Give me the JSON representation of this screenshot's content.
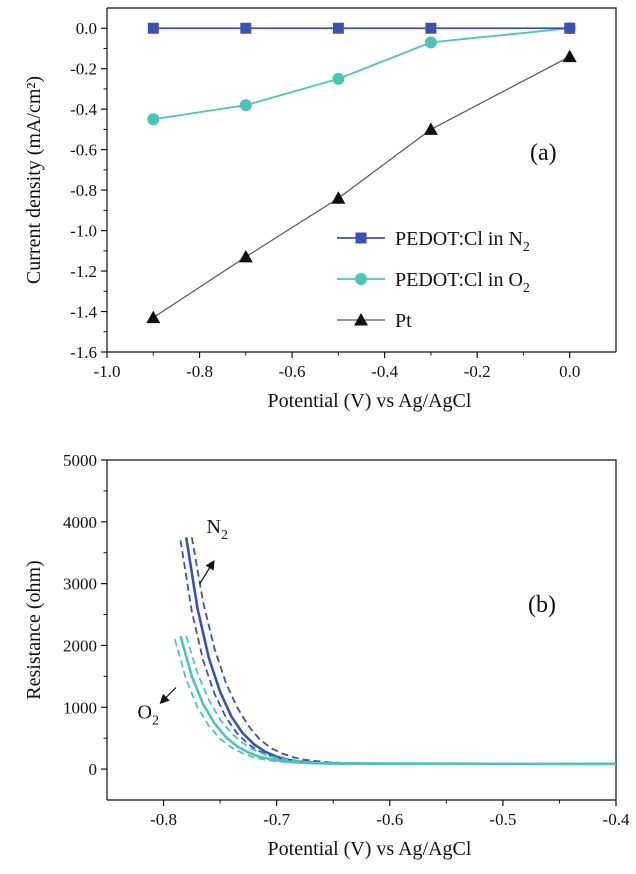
{
  "colors": {
    "axis": "#111111",
    "n2_series": "#3b52b3",
    "o2_series": "#4dc4b8",
    "pt_series": "#111111",
    "pt_line": "#555555"
  },
  "chart_data": [
    {
      "id": "a",
      "type": "line",
      "panel_label": "(a)",
      "xlabel": "Potential (V) vs Ag/AgCl",
      "ylabel": "Current density (mA/cm²)",
      "xlim": [
        -1.0,
        0.1
      ],
      "ylim": [
        -1.6,
        0.1
      ],
      "x_ticks": [
        -1.0,
        -0.8,
        -0.6,
        -0.4,
        -0.2,
        0.0
      ],
      "x_tick_labels": [
        "-1.0",
        "-0.8",
        "-0.6",
        "-0.4",
        "-0.2",
        "0.0"
      ],
      "y_ticks": [
        0.0,
        -0.2,
        -0.4,
        -0.6,
        -0.8,
        -1.0,
        -1.2,
        -1.4,
        -1.6
      ],
      "y_tick_labels": [
        "0.0",
        "-0.2",
        "-0.4",
        "-0.6",
        "-0.8",
        "-1.0",
        "-1.2",
        "-1.4",
        "-1.6"
      ],
      "grid": false,
      "legend_position": "lower-right",
      "series": [
        {
          "name": "PEDOT:Cl in N",
          "name_sub": "2",
          "marker": "square",
          "color": "#3b52b3",
          "line_color": "#3b52b3",
          "x": [
            -0.9,
            -0.7,
            -0.5,
            -0.3,
            0.0
          ],
          "y": [
            0.0,
            0.0,
            0.0,
            0.0,
            0.0
          ]
        },
        {
          "name": "PEDOT:Cl in O",
          "name_sub": "2",
          "marker": "circle",
          "color": "#4dc4b8",
          "line_color": "#4dc4b8",
          "x": [
            -0.9,
            -0.7,
            -0.5,
            -0.3,
            0.0
          ],
          "y": [
            -0.45,
            -0.38,
            -0.25,
            -0.07,
            0.0
          ]
        },
        {
          "name": "Pt",
          "name_sub": "",
          "marker": "triangle",
          "color": "#111111",
          "line_color": "#555555",
          "x": [
            -0.9,
            -0.7,
            -0.5,
            -0.3,
            0.0
          ],
          "y": [
            -1.43,
            -1.13,
            -0.84,
            -0.5,
            -0.14
          ]
        }
      ]
    },
    {
      "id": "b",
      "type": "line",
      "panel_label": "(b)",
      "xlabel": "Potential (V) vs Ag/AgCl",
      "ylabel": "Resistance (ohm)",
      "xlim": [
        -0.85,
        -0.4
      ],
      "ylim": [
        -500,
        5000
      ],
      "x_ticks": [
        -0.8,
        -0.7,
        -0.6,
        -0.5,
        -0.4
      ],
      "x_tick_labels": [
        "-0.8",
        "-0.7",
        "-0.6",
        "-0.5",
        "-0.4"
      ],
      "y_ticks": [
        0,
        1000,
        2000,
        3000,
        4000,
        5000
      ],
      "y_tick_labels": [
        "0",
        "1000",
        "2000",
        "3000",
        "4000",
        "5000"
      ],
      "grid": false,
      "annotations": [
        {
          "text": "N",
          "sub": "2",
          "x": -0.762,
          "y": 3820,
          "arrow_from": [
            -0.768,
            3000
          ],
          "arrow_to": [
            -0.756,
            3350
          ]
        },
        {
          "text": "O",
          "sub": "2",
          "x": -0.823,
          "y": 820,
          "arrow_from": [
            -0.789,
            1320
          ],
          "arrow_to": [
            -0.802,
            1080
          ]
        }
      ],
      "series": [
        {
          "group": "N2",
          "style": "solid",
          "color": "#3b52b3",
          "x": [
            -0.78,
            -0.77,
            -0.76,
            -0.75,
            -0.74,
            -0.73,
            -0.72,
            -0.71,
            -0.7,
            -0.69,
            -0.68,
            -0.66,
            -0.64,
            -0.6,
            -0.4
          ],
          "y": [
            3750,
            2600,
            1800,
            1250,
            850,
            580,
            400,
            280,
            200,
            150,
            120,
            95,
            90,
            88,
            85
          ]
        },
        {
          "group": "N2",
          "style": "dashed",
          "color": "#3b52b3",
          "x": [
            -0.785,
            -0.775,
            -0.765,
            -0.755,
            -0.745,
            -0.735,
            -0.725,
            -0.715,
            -0.705,
            -0.695,
            -0.685,
            -0.665,
            -0.645,
            -0.6,
            -0.4
          ],
          "y": [
            3700,
            2550,
            1760,
            1220,
            840,
            580,
            400,
            285,
            210,
            160,
            130,
            100,
            92,
            88,
            85
          ]
        },
        {
          "group": "N2",
          "style": "dashed",
          "color": "#3b52b3",
          "x": [
            -0.775,
            -0.765,
            -0.755,
            -0.745,
            -0.735,
            -0.725,
            -0.715,
            -0.705,
            -0.695,
            -0.685,
            -0.675,
            -0.655,
            -0.635,
            -0.6,
            -0.4
          ],
          "y": [
            3750,
            2700,
            1950,
            1400,
            1000,
            700,
            480,
            340,
            250,
            190,
            150,
            110,
            95,
            88,
            85
          ]
        },
        {
          "group": "O2",
          "style": "solid",
          "color": "#4dc4b8",
          "x": [
            -0.785,
            -0.775,
            -0.765,
            -0.755,
            -0.745,
            -0.735,
            -0.725,
            -0.715,
            -0.705,
            -0.695,
            -0.68,
            -0.66,
            -0.6,
            -0.4
          ],
          "y": [
            2150,
            1500,
            1050,
            740,
            520,
            370,
            270,
            200,
            160,
            130,
            105,
            92,
            88,
            85
          ]
        },
        {
          "group": "O2",
          "style": "dashed",
          "color": "#4dc4b8",
          "x": [
            -0.79,
            -0.78,
            -0.77,
            -0.76,
            -0.75,
            -0.74,
            -0.73,
            -0.72,
            -0.71,
            -0.7,
            -0.68,
            -0.66,
            -0.6,
            -0.4
          ],
          "y": [
            2100,
            1450,
            1000,
            700,
            490,
            350,
            255,
            190,
            150,
            125,
            100,
            90,
            87,
            85
          ]
        },
        {
          "group": "O2",
          "style": "dashed",
          "color": "#4dc4b8",
          "x": [
            -0.78,
            -0.77,
            -0.76,
            -0.75,
            -0.74,
            -0.73,
            -0.72,
            -0.71,
            -0.7,
            -0.69,
            -0.675,
            -0.655,
            -0.6,
            -0.4
          ],
          "y": [
            2150,
            1550,
            1120,
            800,
            580,
            420,
            310,
            230,
            180,
            145,
            115,
            98,
            88,
            85
          ]
        }
      ]
    }
  ]
}
